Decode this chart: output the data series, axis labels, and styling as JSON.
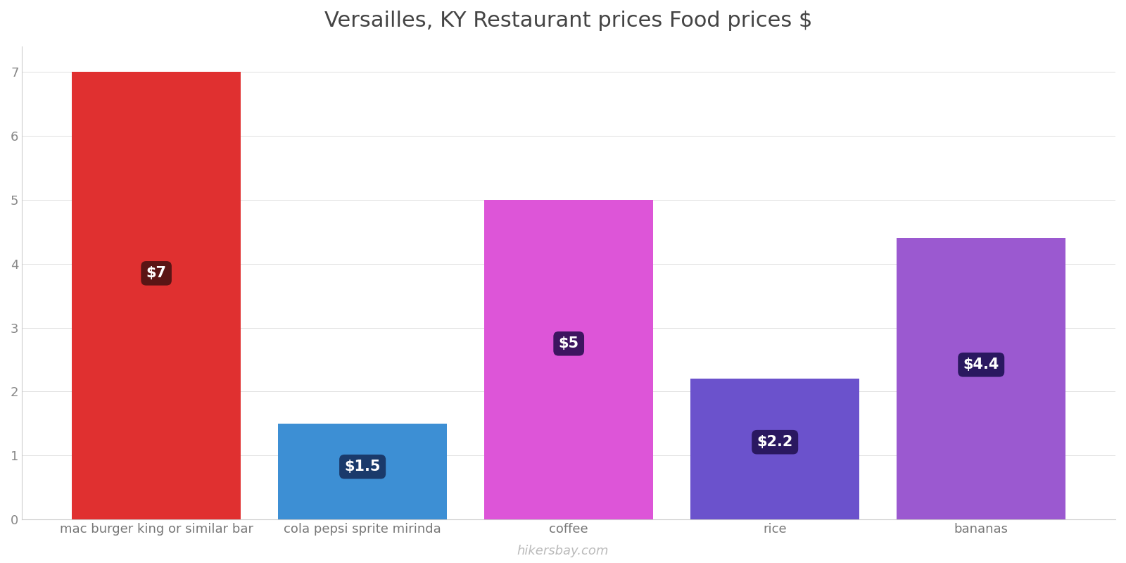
{
  "title": "Versailles, KY Restaurant prices Food prices $",
  "categories": [
    "mac burger king or similar bar",
    "cola pepsi sprite mirinda",
    "coffee",
    "rice",
    "bananas"
  ],
  "values": [
    7,
    1.5,
    5,
    2.2,
    4.4
  ],
  "bar_colors": [
    "#e03030",
    "#3d8fd4",
    "#dd55d8",
    "#6b52cc",
    "#9b59d0"
  ],
  "label_texts": [
    "$7",
    "$1.5",
    "$5",
    "$2.2",
    "$4.4"
  ],
  "label_box_colors": [
    "#5a1515",
    "#1a3a6b",
    "#3d1560",
    "#2a1860",
    "#2a1860"
  ],
  "ylim": [
    0,
    7.4
  ],
  "yticks": [
    0,
    1,
    2,
    3,
    4,
    5,
    6,
    7
  ],
  "title_fontsize": 22,
  "tick_fontsize": 13,
  "label_fontsize": 15,
  "bar_width": 0.82,
  "watermark": "hikersbay.com",
  "bg_color": "#ffffff",
  "grid_color": "#e0e0e0"
}
